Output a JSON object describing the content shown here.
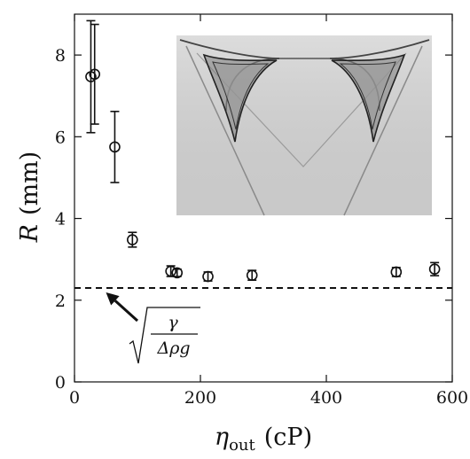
{
  "chart_data": {
    "type": "scatter",
    "xlabel": "ηout (cP)",
    "xlabel_main": "η",
    "xlabel_sub": "out",
    "xlabel_unit": "(cP)",
    "ylabel": "R (mm)",
    "ylabel_main": "R",
    "ylabel_unit": "(mm)",
    "xlim": [
      0,
      600
    ],
    "ylim": [
      0,
      9
    ],
    "xticks": [
      0,
      200,
      400,
      600
    ],
    "yticks": [
      0,
      2,
      4,
      6,
      8
    ],
    "xtick_labels": [
      "0",
      "200",
      "400",
      "600"
    ],
    "ytick_labels": [
      "0",
      "2",
      "4",
      "6",
      "8"
    ],
    "series": [
      {
        "marker": "open-circle",
        "points": [
          {
            "x": 26,
            "y": 7.47,
            "err": 1.37
          },
          {
            "x": 32,
            "y": 7.53,
            "err": 1.22
          },
          {
            "x": 64,
            "y": 5.75,
            "err": 0.87
          },
          {
            "x": 92,
            "y": 3.48,
            "err": 0.18
          },
          {
            "x": 153,
            "y": 2.71,
            "err": 0.13
          },
          {
            "x": 163,
            "y": 2.67,
            "err": 0.09
          },
          {
            "x": 212,
            "y": 2.58,
            "err": 0.11
          },
          {
            "x": 282,
            "y": 2.61,
            "err": 0.12
          },
          {
            "x": 511,
            "y": 2.69,
            "err": 0.11
          },
          {
            "x": 572,
            "y": 2.76,
            "err": 0.16
          }
        ]
      }
    ],
    "reference_line": {
      "y": 2.3,
      "style": "dashed"
    },
    "annotation": {
      "formula_symbols": {
        "numerator": "γ",
        "denominator": "Δρg"
      },
      "arrow_target": {
        "x": 50,
        "y": 2.3
      }
    },
    "inset_image": {
      "description_name": "inset-photo",
      "background": "#d4d4d4"
    },
    "grid": false
  }
}
